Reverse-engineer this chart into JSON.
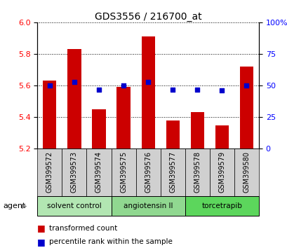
{
  "title": "GDS3556 / 216700_at",
  "samples": [
    "GSM399572",
    "GSM399573",
    "GSM399574",
    "GSM399575",
    "GSM399576",
    "GSM399577",
    "GSM399578",
    "GSM399579",
    "GSM399580"
  ],
  "transformed_counts": [
    5.63,
    5.83,
    5.45,
    5.59,
    5.91,
    5.38,
    5.43,
    5.35,
    5.72
  ],
  "percentile_ranks": [
    50,
    53,
    47,
    50,
    53,
    47,
    47,
    46,
    50
  ],
  "ylim": [
    5.2,
    6.0
  ],
  "yticks_left": [
    5.2,
    5.4,
    5.6,
    5.8,
    6.0
  ],
  "yticks_right": [
    0,
    25,
    50,
    75,
    100
  ],
  "bar_color": "#cc0000",
  "dot_color": "#0000cc",
  "bar_bottom": 5.2,
  "agent_groups": [
    {
      "label": "solvent control",
      "start": 0,
      "end": 3,
      "color": "#b2e6b2"
    },
    {
      "label": "angiotensin II",
      "start": 3,
      "end": 6,
      "color": "#90d890"
    },
    {
      "label": "torcetrapib",
      "start": 6,
      "end": 9,
      "color": "#5cd65c"
    }
  ],
  "agent_label": "agent",
  "legend_items": [
    {
      "label": "transformed count",
      "color": "#cc0000"
    },
    {
      "label": "percentile rank within the sample",
      "color": "#0000cc"
    }
  ],
  "bar_width": 0.55,
  "tick_label_fontsize": 7,
  "title_fontsize": 10,
  "sample_box_color": "#d0d0d0",
  "grid_color": "#000000"
}
